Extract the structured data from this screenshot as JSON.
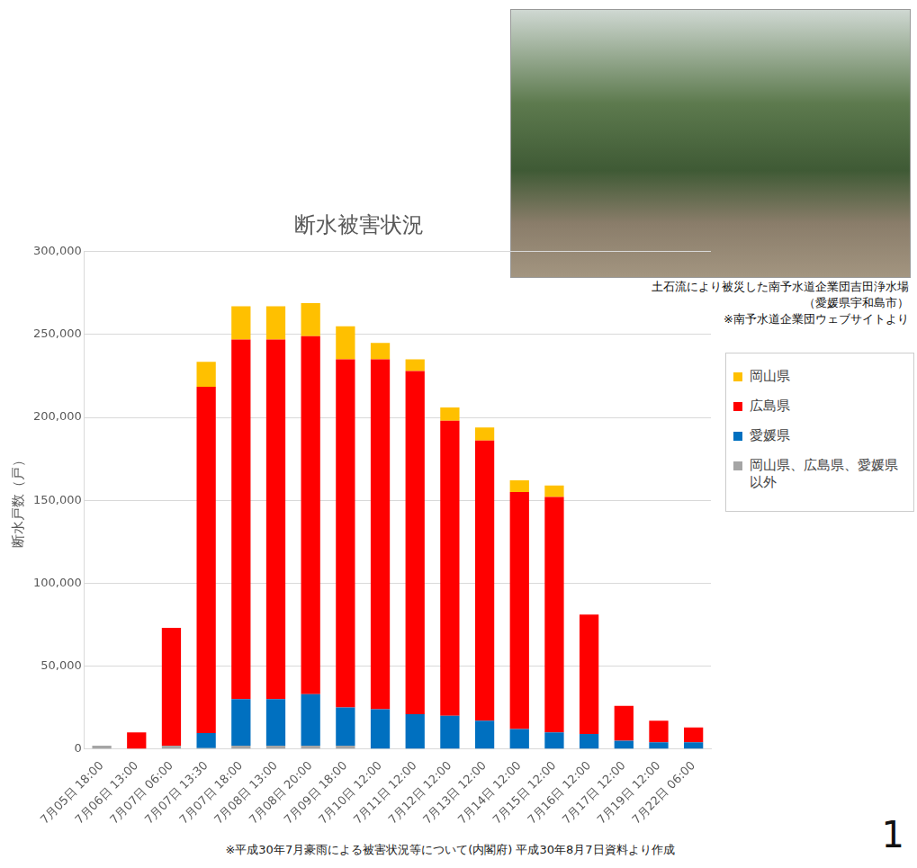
{
  "chart_data": {
    "type": "bar",
    "title": "断水被害状況",
    "y_label": "断水戸数（戸）",
    "categories": [
      "7月05日 18:00",
      "7月06日 13:00",
      "7月07日 06:00",
      "7月07日 13:30",
      "7月07日 18:00",
      "7月08日 13:00",
      "7月08日 20:00",
      "7月09日 18:00",
      "7月10日 12:00",
      "7月11日 12:00",
      "7月12日 12:00",
      "7月13日 12:00",
      "7月14日 12:00",
      "7月15日 12:00",
      "7月16日 12:00",
      "7月17日 12:00",
      "7月19日 12:00",
      "7月22日 06:00"
    ],
    "series": [
      {
        "name": "岡山県",
        "color": "#FFC000",
        "values": [
          0,
          0,
          0,
          15000,
          20000,
          20000,
          20000,
          20000,
          10000,
          7000,
          8000,
          8000,
          7000,
          7000,
          0,
          0,
          0,
          0
        ]
      },
      {
        "name": "広島県",
        "color": "#FF0000",
        "values": [
          0,
          10000,
          71000,
          209000,
          217000,
          217000,
          216000,
          210000,
          211000,
          207000,
          178000,
          169000,
          143000,
          142000,
          72000,
          21000,
          13000,
          9000
        ]
      },
      {
        "name": "愛媛県",
        "color": "#0070C0",
        "values": [
          0,
          0,
          0,
          9000,
          28000,
          28000,
          31000,
          23000,
          24000,
          21000,
          20000,
          17000,
          12000,
          10000,
          9000,
          5000,
          4000,
          4000
        ]
      },
      {
        "name": "岡山県、広島県、愛媛県以外",
        "color": "#A5A5A5",
        "values": [
          2000,
          0,
          2000,
          500,
          2000,
          2000,
          2000,
          2000,
          0,
          0,
          0,
          0,
          0,
          0,
          0,
          0,
          0,
          0
        ]
      }
    ],
    "stacked": true,
    "ylim": [
      0,
      300000
    ],
    "yticks": [
      0,
      {
        "value": 50000,
        "label": "50,000"
      },
      {
        "value": 100000,
        "label": "100,000"
      },
      {
        "value": 150000,
        "label": "150,000"
      },
      {
        "value": 200000,
        "label": "200,000"
      },
      {
        "value": 250000,
        "label": "250,000"
      },
      {
        "value": 300000,
        "label": "300,000"
      }
    ],
    "grid": true,
    "legend": "right"
  },
  "photo_caption": [
    "土石流により被災した南予水道企業団吉田浄水場",
    "（愛媛県宇和島市）",
    "※南予水道企業団ウェブサイトより"
  ],
  "source_note": "※平成30年7月豪雨による被害状況等について(内閣府) 平成30年8月7日資料より作成",
  "page_number": "1"
}
